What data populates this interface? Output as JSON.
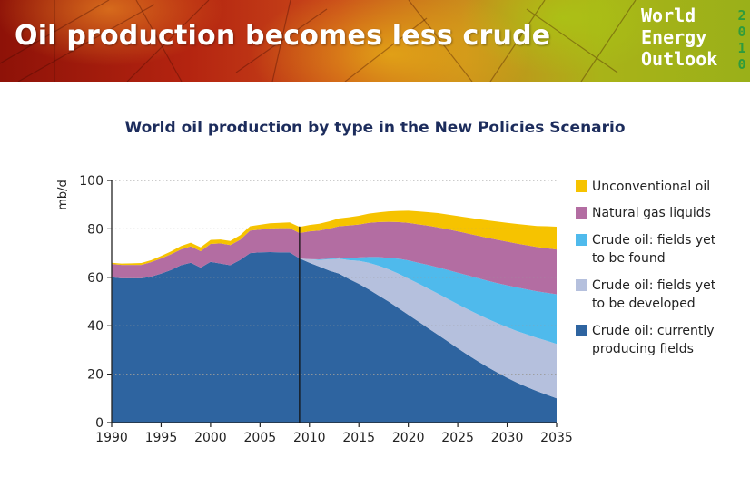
{
  "header": {
    "title": "Oil production becomes less crude",
    "logo_lines": [
      "World",
      "Energy",
      "Outlook"
    ],
    "logo_year": [
      "2",
      "0",
      "1",
      "0"
    ]
  },
  "colors": {
    "unconventional": "#f6c300",
    "ngl": "#b36da2",
    "yet_to_find": "#4fbaec",
    "yet_to_develop": "#b5c0dd",
    "currently_producing": "#2e64a0",
    "title": "#1c2c5c"
  },
  "chart_data": {
    "type": "area",
    "title": "World oil production by type in the New Policies Scenario",
    "xlabel": "",
    "ylabel": "mb/d",
    "xlim": [
      1990,
      2035
    ],
    "ylim": [
      0,
      100
    ],
    "xticks": [
      1990,
      1995,
      2000,
      2005,
      2010,
      2015,
      2020,
      2025,
      2030,
      2035
    ],
    "yticks": [
      0,
      20,
      40,
      60,
      80,
      100
    ],
    "grid": "dotted horizontal",
    "legend_position": "right",
    "divider_year": 2009,
    "x": [
      1990,
      1991,
      1992,
      1993,
      1994,
      1995,
      1996,
      1997,
      1998,
      1999,
      2000,
      2001,
      2002,
      2003,
      2004,
      2005,
      2006,
      2007,
      2008,
      2009,
      2010,
      2011,
      2012,
      2013,
      2014,
      2015,
      2016,
      2017,
      2018,
      2019,
      2020,
      2021,
      2022,
      2023,
      2024,
      2025,
      2026,
      2027,
      2028,
      2029,
      2030,
      2031,
      2032,
      2033,
      2034,
      2035
    ],
    "series": [
      {
        "name": "Crude oil: currently producing fields",
        "color_key": "currently_producing",
        "values": [
          60,
          59.6,
          59.6,
          59.6,
          60.3,
          61.5,
          63,
          65,
          66,
          64,
          66.4,
          65.7,
          65,
          67.2,
          70,
          70.3,
          70.4,
          70.3,
          70.3,
          67.8,
          66,
          64.4,
          62.8,
          61.5,
          59.3,
          57.3,
          55,
          52.5,
          50,
          47.3,
          44.5,
          41.8,
          39,
          36.3,
          33.5,
          30.7,
          28,
          25.4,
          23,
          20.7,
          18.5,
          16.5,
          14.7,
          13,
          11.5,
          10
        ]
      },
      {
        "name": "Crude oil: fields yet to be developed",
        "color_key": "yet_to_develop",
        "values": [
          0,
          0,
          0,
          0,
          0,
          0,
          0,
          0,
          0,
          0,
          0,
          0,
          0,
          0,
          0,
          0,
          0,
          0,
          0,
          0,
          1.5,
          2.8,
          4.6,
          6.2,
          7.8,
          9.5,
          11,
          12.3,
          13.3,
          14.2,
          15,
          15.7,
          16.4,
          17,
          17.6,
          18.2,
          18.8,
          19.4,
          19.9,
          20.4,
          20.9,
          21.3,
          21.7,
          22,
          22.3,
          22.5
        ]
      },
      {
        "name": "Crude oil: fields yet to be found",
        "color_key": "yet_to_find",
        "values": [
          0,
          0,
          0,
          0,
          0,
          0,
          0,
          0,
          0,
          0,
          0,
          0,
          0,
          0,
          0,
          0,
          0,
          0,
          0,
          0,
          0,
          0.2,
          0.3,
          0.5,
          0.9,
          1.4,
          2.4,
          3.6,
          4.7,
          6.2,
          7.5,
          8.5,
          9.7,
          10.8,
          11.9,
          13,
          14,
          14.9,
          15.7,
          16.5,
          17.3,
          18,
          18.6,
          19.2,
          19.8,
          20.5
        ]
      },
      {
        "name": "Natural gas liquids",
        "color_key": "ngl",
        "values": [
          5.5,
          5.5,
          5.5,
          5.5,
          6,
          6.3,
          6.5,
          6.5,
          6.8,
          6.8,
          7.4,
          8.3,
          8.3,
          8.3,
          9.3,
          9.4,
          9.8,
          10,
          10,
          10.5,
          11.5,
          11.9,
          12.4,
          12.9,
          13.4,
          13.6,
          14.1,
          14.4,
          14.9,
          15.1,
          15.5,
          15.9,
          16.2,
          16.5,
          16.8,
          17.1,
          17.3,
          17.5,
          17.7,
          17.9,
          18,
          18.1,
          18.2,
          18.3,
          18.4,
          18.5
        ]
      },
      {
        "name": "Unconventional oil",
        "color_key": "unconventional",
        "values": [
          0.5,
          0.6,
          0.7,
          0.8,
          0.8,
          1,
          1.2,
          1.4,
          1.5,
          1.6,
          1.6,
          1.6,
          1.7,
          1.9,
          1.8,
          2,
          2.1,
          2.2,
          2.4,
          2.5,
          2.6,
          2.8,
          3,
          3.2,
          3.4,
          3.6,
          3.8,
          4,
          4.3,
          4.6,
          5,
          5.3,
          5.6,
          5.9,
          6.1,
          6.3,
          6.6,
          6.9,
          7.2,
          7.5,
          7.8,
          8.1,
          8.4,
          8.7,
          9.1,
          9.4
        ]
      }
    ]
  },
  "legend": [
    {
      "label": "Unconventional oil",
      "color_key": "unconventional"
    },
    {
      "label": "Natural gas liquids",
      "color_key": "ngl"
    },
    {
      "label": "Crude oil: fields yet\nto be found",
      "color_key": "yet_to_find"
    },
    {
      "label": "Crude oil: fields yet\nto be developed",
      "color_key": "yet_to_develop"
    },
    {
      "label": "Crude oil: currently\nproducing fields",
      "color_key": "currently_producing"
    }
  ]
}
